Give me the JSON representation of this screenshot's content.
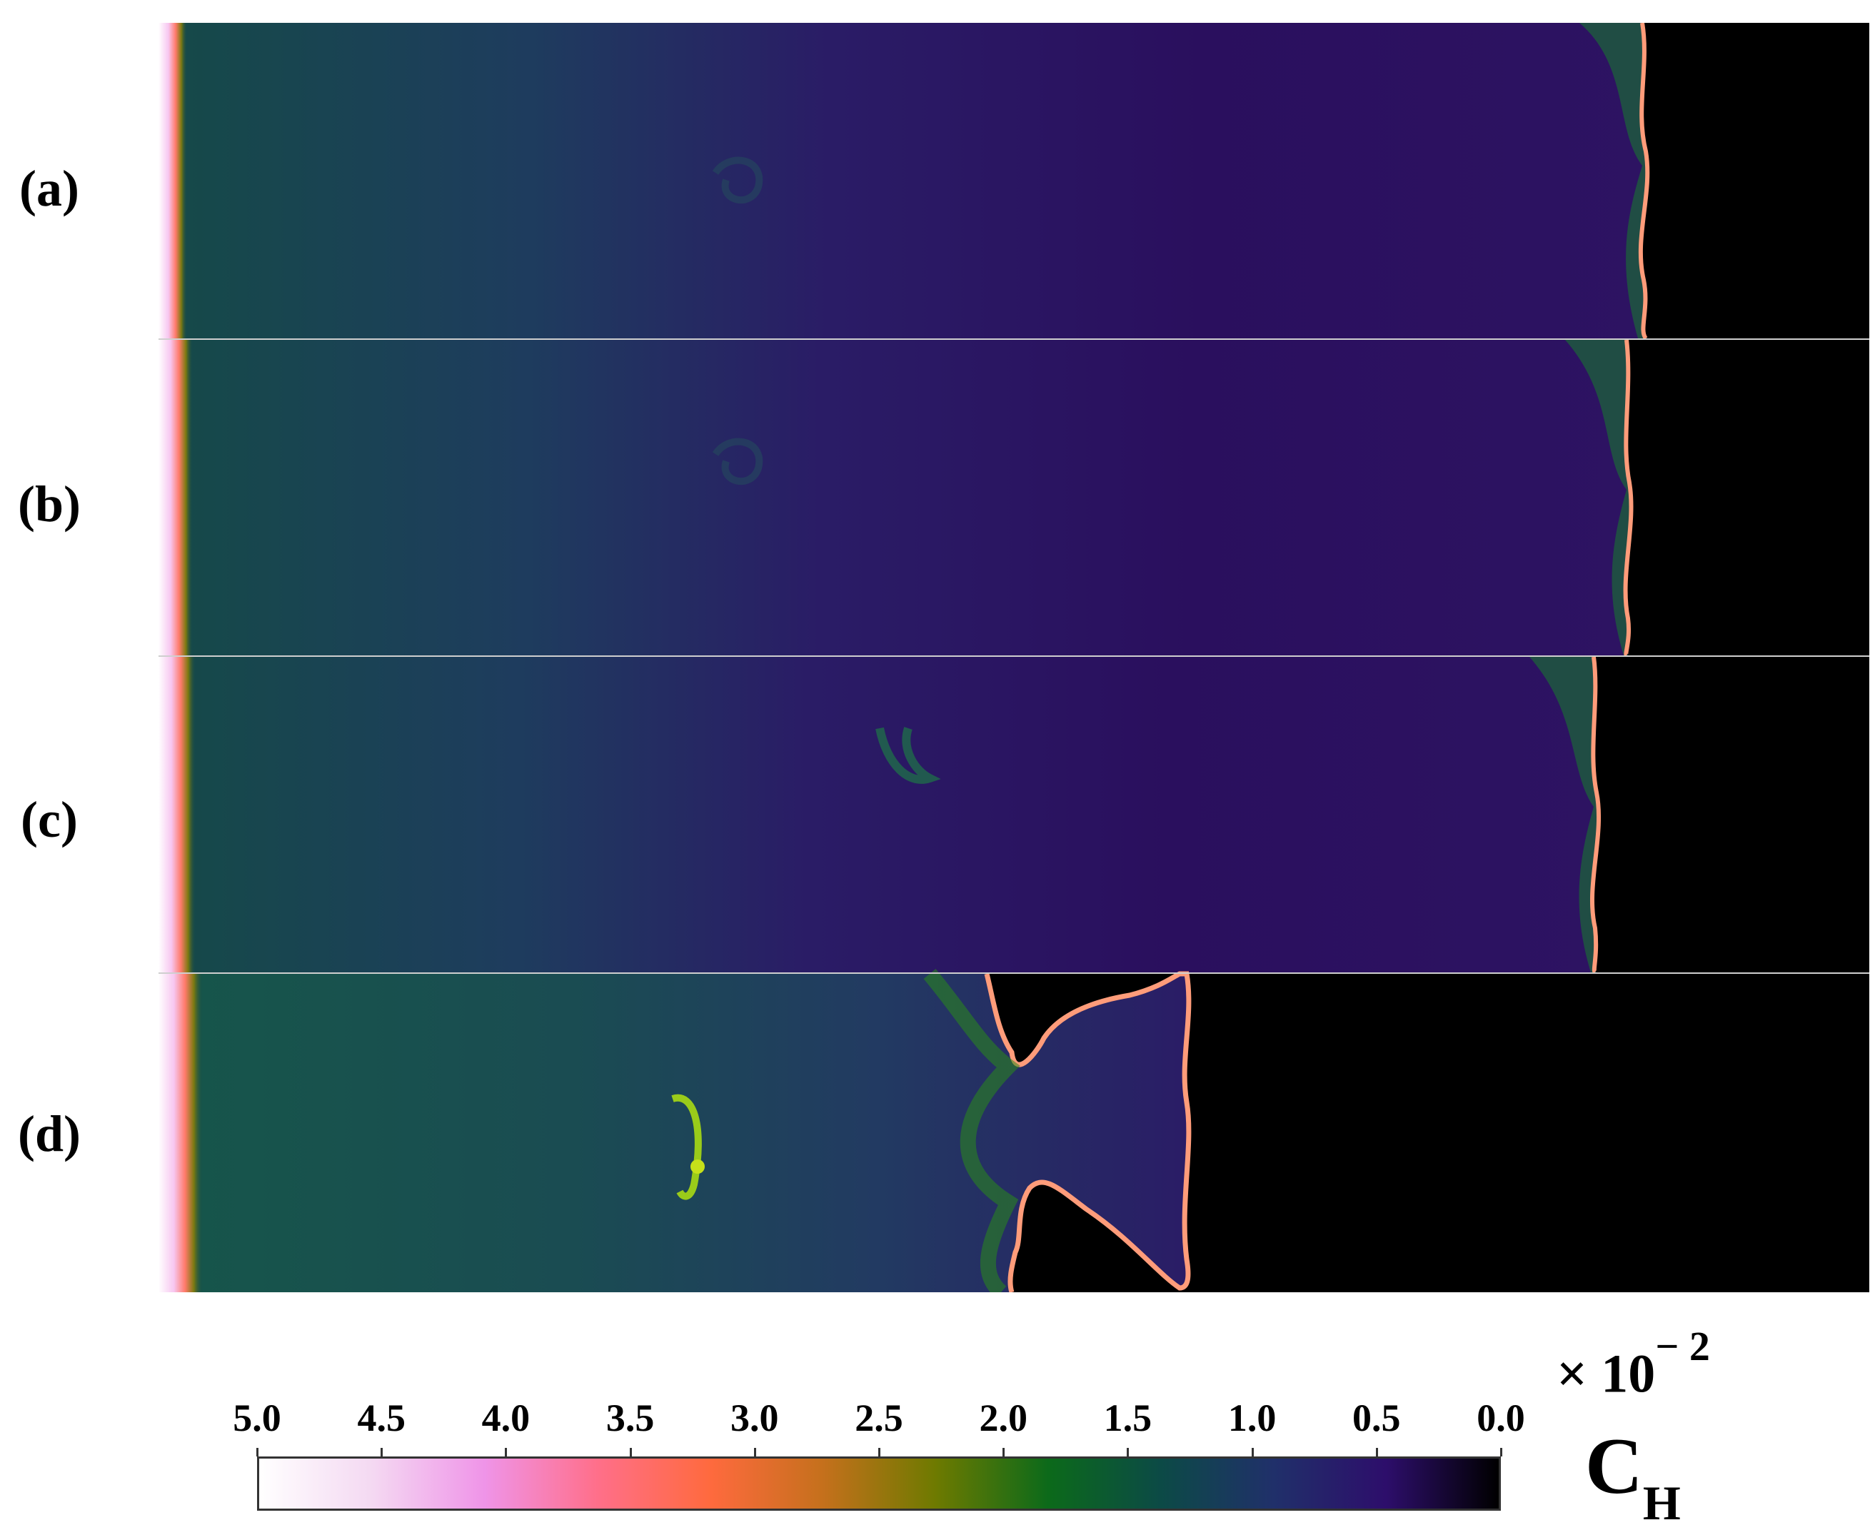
{
  "panels": [
    {
      "label": "(a)"
    },
    {
      "label": "(b)"
    },
    {
      "label": "(c)"
    },
    {
      "label": "(d)"
    }
  ],
  "colorbar": {
    "ticks": [
      "5.0",
      "4.5",
      "4.0",
      "3.5",
      "3.0",
      "2.5",
      "2.0",
      "1.5",
      "1.0",
      "0.5",
      "0.0"
    ],
    "multiplier_base": "× 10",
    "multiplier_exp": "− 2",
    "variable": "C",
    "variable_sub": "H",
    "colormap": [
      "#ffffff",
      "#f4d9f2",
      "#ef94e8",
      "#ff6f8a",
      "#ff6a3e",
      "#c5701c",
      "#6e7a00",
      "#0c6a1a",
      "#0c4a46",
      "#20306a",
      "#2d0e6b",
      "#000000"
    ]
  },
  "colors": {
    "field_dark": "#2a0f5e",
    "field_green": "#17504a",
    "unburnt": "#000000",
    "separator": "#cfcfcf"
  }
}
